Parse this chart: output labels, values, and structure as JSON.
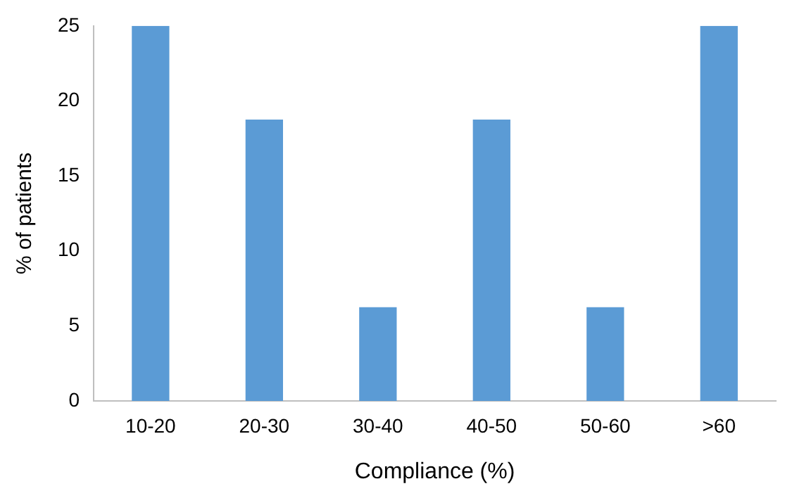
{
  "chart_data": {
    "type": "bar",
    "xlabel": "Compliance (%)",
    "ylabel": "% of patients",
    "categories": [
      "10-20",
      "20-30",
      "30-40",
      "40-50",
      "50-60",
      ">60"
    ],
    "values": [
      25,
      18.75,
      6.25,
      18.75,
      6.25,
      25
    ],
    "color": "#5b9bd5",
    "ylim": [
      0,
      25
    ],
    "yticks": [
      0,
      5,
      10,
      15,
      20,
      25
    ],
    "grid": false,
    "legend": false
  }
}
